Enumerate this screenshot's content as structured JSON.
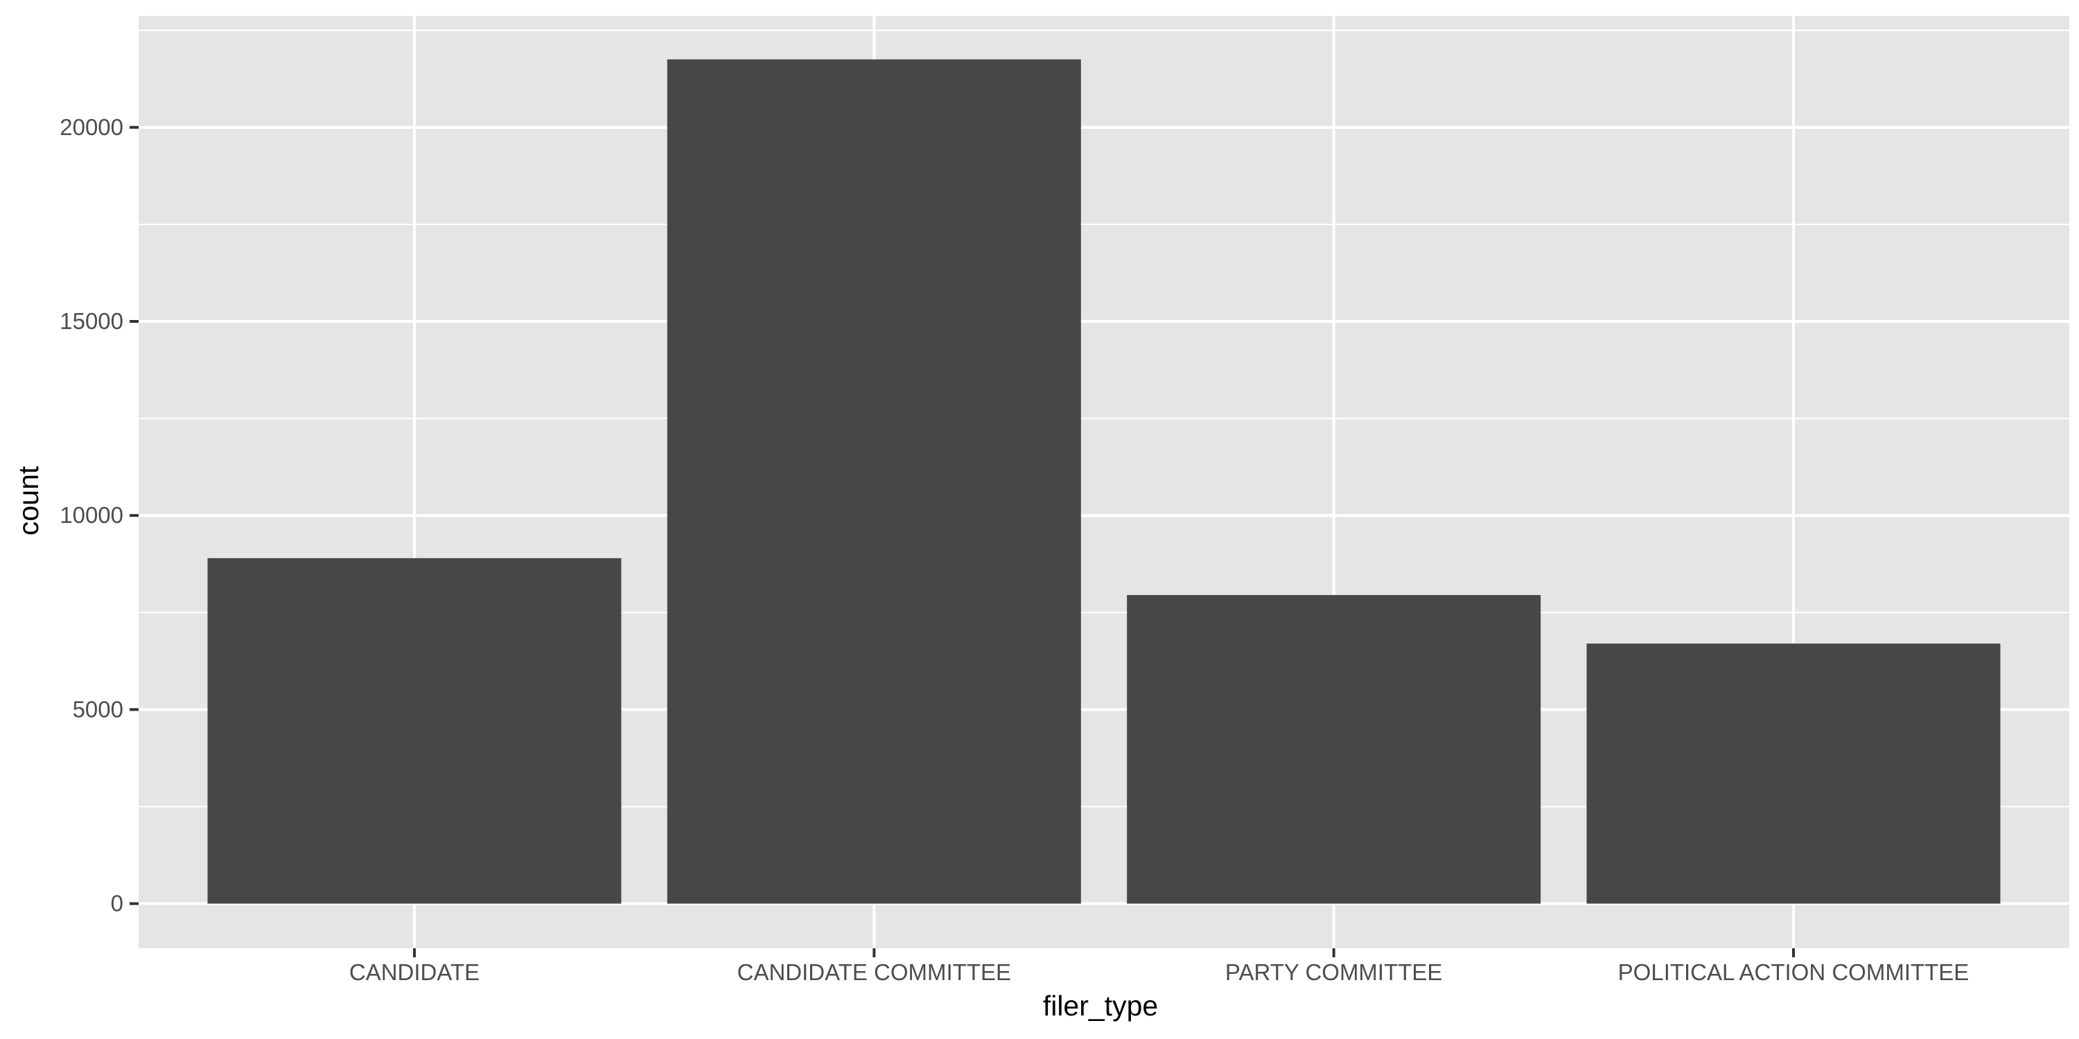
{
  "chart_data": {
    "type": "bar",
    "categories": [
      "CANDIDATE",
      "CANDIDATE COMMITTEE",
      "PARTY COMMITTEE",
      "POLITICAL ACTION COMMITTEE"
    ],
    "values": [
      8900,
      21750,
      7950,
      6700
    ],
    "xlabel": "filer_type",
    "ylabel": "count",
    "ylim": [
      -1150,
      22870
    ],
    "yticks": [
      0,
      5000,
      10000,
      15000,
      20000
    ],
    "grid": true,
    "bar_color": "#474747",
    "panel_color": "#e5e5e5",
    "grid_color": "#ffffff"
  }
}
